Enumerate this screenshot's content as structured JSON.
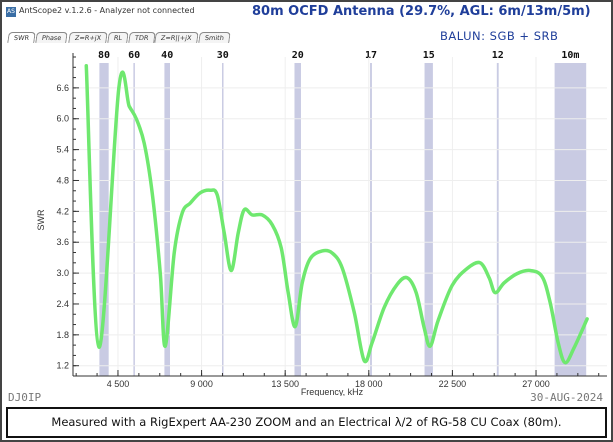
{
  "window": {
    "title": "AntScope2 v.1.2.6 - Analyzer not connected",
    "icon": "AS"
  },
  "heading": "80m OCFD Antenna (29.7%, AGL: 6m/13m/5m)",
  "balun": "BALUN:   SGB + SRB",
  "tabs": [
    {
      "label": "SWR",
      "active": true
    },
    {
      "label": "Phase"
    },
    {
      "label": "Z=R+jX"
    },
    {
      "label": "RL"
    },
    {
      "label": "TDR"
    },
    {
      "label": "Z=R||+jX"
    },
    {
      "label": "Smith"
    }
  ],
  "callsign": "DJ0IP",
  "date": "30-AUG-2024",
  "caption": "Measured with a RigExpert AA-230 ZOOM and an Electrical λ/2 of RG-58 CU Coax (80m).",
  "colors": {
    "curve": "#6fe86f",
    "band": "#c9cbe3",
    "heading": "#1f3e9a"
  },
  "chart_data": {
    "type": "line",
    "xlabel": "Frequency, kHz",
    "ylabel": "SWR",
    "xlim": [
      2080,
      30820
    ],
    "ylim": [
      1.0,
      7.2
    ],
    "xticks": [
      4500,
      9000,
      13500,
      18000,
      22500,
      27000
    ],
    "xtick_labels": [
      "4 500",
      "9 000",
      "13 500",
      "18 000",
      "22 500",
      "27 000"
    ],
    "yticks": [
      1.2,
      1.8,
      2.4,
      3.0,
      3.6,
      4.2,
      4.8,
      5.4,
      6.0,
      6.6
    ],
    "ytick_labels": [
      "1.2",
      "1.8",
      "2.4",
      "3.0",
      "3.6",
      "4.2",
      "4.8",
      "5.4",
      "6.0",
      "6.6"
    ],
    "grid": true,
    "bands": [
      {
        "label": "80",
        "from": 3500,
        "to": 4000
      },
      {
        "label": "60",
        "from": 5330,
        "to": 5410
      },
      {
        "label": "40",
        "from": 7000,
        "to": 7300
      },
      {
        "label": "30",
        "from": 10100,
        "to": 10150
      },
      {
        "label": "20",
        "from": 14000,
        "to": 14350
      },
      {
        "label": "17",
        "from": 18068,
        "to": 18168
      },
      {
        "label": "15",
        "from": 21000,
        "to": 21450
      },
      {
        "label": "12",
        "from": 24890,
        "to": 24990
      },
      {
        "label": "10m",
        "from": 28000,
        "to": 29700
      }
    ],
    "series": [
      {
        "x": [
          2795,
          3478,
          4554,
          5108,
          5485,
          5915,
          6345,
          6776,
          7045,
          7530,
          7960,
          8390,
          8928,
          9466,
          9842,
          10219,
          10596,
          10972,
          11295,
          11726,
          12264,
          12802,
          13286,
          13662,
          14039,
          14416,
          14846,
          15492,
          16030,
          16568,
          17214,
          17752,
          18181,
          18827,
          19526,
          20064,
          20549,
          20979,
          21302,
          21733,
          22486,
          23293,
          23993,
          24477,
          24800,
          25284,
          25984,
          26683,
          27329,
          27759,
          28190,
          28566,
          29051,
          29750
        ],
        "y": [
          7.03,
          1.56,
          6.62,
          6.24,
          6.0,
          5.52,
          4.55,
          3.0,
          1.58,
          3.4,
          4.17,
          4.36,
          4.56,
          4.61,
          4.52,
          3.78,
          3.05,
          3.78,
          4.23,
          4.13,
          4.13,
          3.94,
          3.49,
          2.62,
          1.96,
          2.81,
          3.28,
          3.43,
          3.39,
          3.1,
          2.24,
          1.3,
          1.65,
          2.33,
          2.78,
          2.91,
          2.62,
          1.94,
          1.58,
          2.08,
          2.76,
          3.09,
          3.2,
          2.91,
          2.62,
          2.81,
          2.99,
          3.05,
          2.93,
          2.43,
          1.65,
          1.26,
          1.55,
          2.11
        ]
      }
    ]
  }
}
